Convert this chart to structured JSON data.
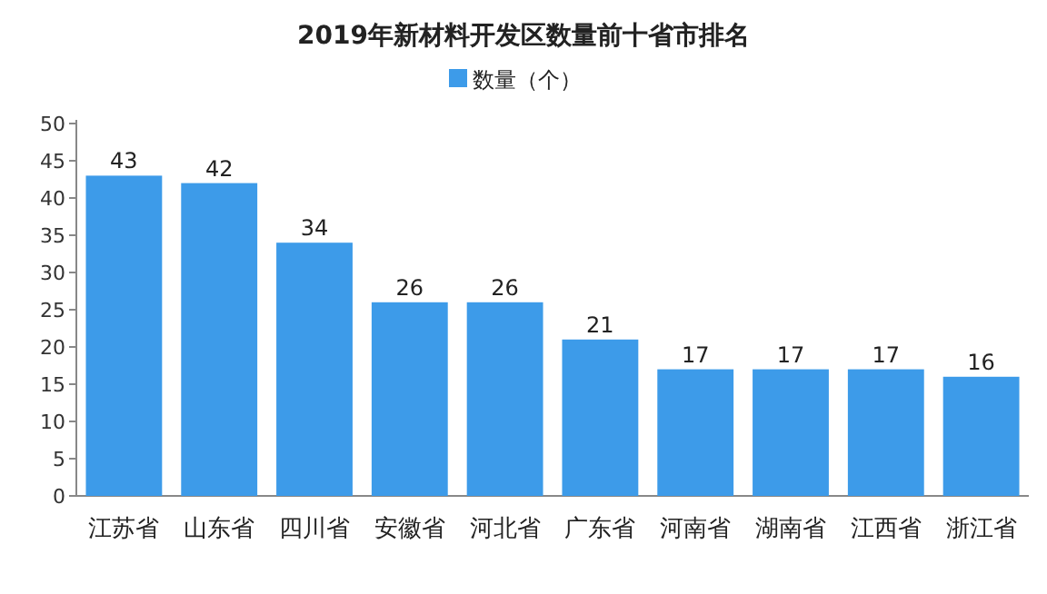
{
  "chart_data": {
    "type": "bar",
    "title": "2019年新材料开发区数量前十省市排名",
    "categories": [
      "江苏省",
      "山东省",
      "四川省",
      "安徽省",
      "河北省",
      "广东省",
      "河南省",
      "湖南省",
      "江西省",
      "浙江省"
    ],
    "series": [
      {
        "name": "数量（个）",
        "color": "#3d9be9",
        "values": [
          43,
          42,
          34,
          26,
          26,
          21,
          17,
          17,
          17,
          16
        ]
      }
    ],
    "ylim": [
      0,
      50
    ],
    "yticks": [
      0,
      5,
      10,
      15,
      20,
      25,
      30,
      35,
      40,
      45,
      50
    ],
    "data_labels": true,
    "legend": "top"
  }
}
